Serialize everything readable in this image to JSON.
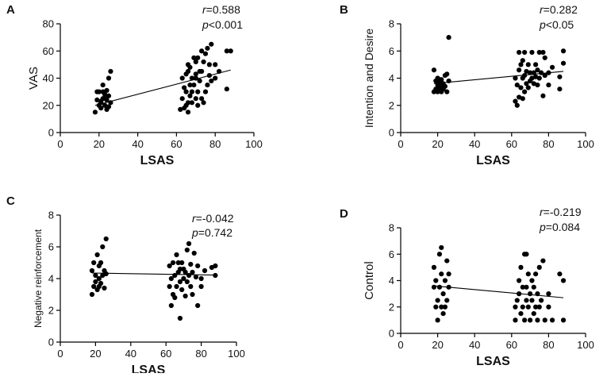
{
  "figure": {
    "title": ""
  },
  "chart_data": [
    {
      "type": "scatter",
      "panel": "A",
      "xlabel": "LSAS",
      "ylabel": "VAS",
      "xlim": [
        0,
        100
      ],
      "ylim": [
        0,
        80
      ],
      "xticks": [
        0,
        20,
        40,
        60,
        80,
        100
      ],
      "yticks": [
        0,
        20,
        40,
        60,
        80
      ],
      "stats": {
        "r_symbol": "r",
        "r_value": "=0.588",
        "p_symbol": "p",
        "p_value": "<0.001"
      },
      "fit": {
        "x": [
          18,
          88
        ],
        "y": [
          20,
          46
        ]
      },
      "points": {
        "x": [
          18,
          19,
          20,
          20,
          21,
          21,
          22,
          22,
          22,
          23,
          23,
          24,
          24,
          24,
          25,
          25,
          25,
          26,
          26,
          19,
          21,
          23,
          62,
          63,
          63,
          64,
          64,
          65,
          65,
          65,
          66,
          66,
          66,
          67,
          67,
          67,
          68,
          68,
          68,
          69,
          69,
          70,
          70,
          70,
          71,
          71,
          71,
          72,
          72,
          73,
          73,
          73,
          74,
          74,
          75,
          75,
          76,
          76,
          77,
          77,
          78,
          78,
          80,
          80,
          82,
          86,
          86,
          88,
          66,
          70
        ],
        "y": [
          15,
          24,
          20,
          30,
          18,
          23,
          25,
          30,
          35,
          20,
          28,
          17,
          24,
          31,
          19,
          27,
          40,
          22,
          45,
          30,
          22,
          25,
          17,
          25,
          40,
          18,
          33,
          20,
          30,
          43,
          15,
          22,
          45,
          27,
          35,
          48,
          22,
          30,
          40,
          35,
          55,
          25,
          43,
          52,
          20,
          30,
          55,
          38,
          45,
          25,
          45,
          60,
          22,
          52,
          30,
          58,
          35,
          62,
          42,
          50,
          38,
          65,
          40,
          50,
          45,
          60,
          32,
          60,
          50,
          40
        ]
      }
    },
    {
      "type": "scatter",
      "panel": "B",
      "xlabel": "LSAS",
      "ylabel": "Intention and Desire",
      "xlim": [
        0,
        100
      ],
      "ylim": [
        0,
        8
      ],
      "xticks": [
        0,
        20,
        40,
        60,
        80,
        100
      ],
      "yticks": [
        0,
        2,
        4,
        6,
        8
      ],
      "stats": {
        "r_symbol": "r",
        "r_value": "=0.282",
        "p_symbol": "p",
        "p_value": "<0.05"
      },
      "fit": {
        "x": [
          18,
          88
        ],
        "y": [
          3.6,
          4.5
        ]
      },
      "points": {
        "x": [
          18,
          18,
          19,
          19,
          20,
          20,
          20,
          21,
          21,
          22,
          22,
          22,
          23,
          23,
          24,
          24,
          25,
          25,
          26,
          26,
          62,
          62,
          63,
          63,
          64,
          64,
          64,
          65,
          65,
          66,
          66,
          66,
          67,
          67,
          67,
          68,
          68,
          69,
          69,
          70,
          70,
          71,
          71,
          72,
          72,
          73,
          73,
          74,
          74,
          75,
          75,
          76,
          77,
          77,
          78,
          78,
          80,
          80,
          82,
          86,
          86,
          88,
          88
        ],
        "y": [
          3.0,
          4.6,
          3.2,
          3.8,
          3.0,
          3.5,
          4.0,
          3.3,
          3.7,
          3.0,
          3.5,
          3.9,
          3.2,
          3.6,
          3.4,
          4.2,
          3.0,
          4.3,
          3.8,
          7.0,
          2.3,
          4.0,
          2.0,
          3.5,
          2.6,
          4.6,
          5.9,
          3.3,
          5.0,
          2.5,
          4.0,
          5.3,
          3.0,
          4.2,
          5.9,
          3.6,
          4.5,
          3.3,
          5.0,
          3.8,
          4.4,
          4.0,
          5.9,
          3.6,
          4.4,
          4.1,
          5.0,
          3.5,
          4.6,
          4.0,
          5.9,
          4.4,
          2.7,
          5.9,
          4.2,
          5.5,
          3.5,
          4.4,
          4.8,
          3.2,
          4.1,
          5.1,
          6.0
        ]
      }
    },
    {
      "type": "scatter",
      "panel": "C",
      "xlabel": "LSAS",
      "ylabel": "Negative reinforcement",
      "xlim": [
        0,
        100
      ],
      "ylim": [
        0,
        8
      ],
      "xticks": [
        0,
        20,
        40,
        60,
        80,
        100
      ],
      "yticks": [
        0,
        2,
        4,
        6,
        8
      ],
      "stats": {
        "r_symbol": "r",
        "r_value": "=-0.042",
        "p_symbol": "p",
        "p_value": "=0.742"
      },
      "fit": {
        "x": [
          18,
          88
        ],
        "y": [
          4.35,
          4.22
        ]
      },
      "points": {
        "x": [
          18,
          18,
          19,
          19,
          20,
          20,
          21,
          21,
          22,
          22,
          22,
          23,
          23,
          24,
          24,
          25,
          25,
          26,
          26,
          62,
          62,
          63,
          63,
          64,
          64,
          65,
          65,
          66,
          66,
          67,
          67,
          68,
          68,
          68,
          69,
          69,
          70,
          70,
          71,
          71,
          72,
          72,
          73,
          73,
          74,
          74,
          75,
          75,
          76,
          77,
          78,
          78,
          80,
          80,
          82,
          86,
          88,
          88
        ],
        "y": [
          3.0,
          4.5,
          3.5,
          5.0,
          3.8,
          4.2,
          3.3,
          5.5,
          3.5,
          4.0,
          4.8,
          3.7,
          5.0,
          4.2,
          6.0,
          3.4,
          4.5,
          4.3,
          6.5,
          3.5,
          4.8,
          2.3,
          4.0,
          3.0,
          5.0,
          2.8,
          4.2,
          3.5,
          5.5,
          4.4,
          5.0,
          1.5,
          3.8,
          4.6,
          3.3,
          5.0,
          4.0,
          4.6,
          2.9,
          4.4,
          3.8,
          5.8,
          4.2,
          6.2,
          3.5,
          4.9,
          3.0,
          4.4,
          5.6,
          4.1,
          2.3,
          4.8,
          4.0,
          3.5,
          4.5,
          4.7,
          4.2,
          4.8
        ]
      }
    },
    {
      "type": "scatter",
      "panel": "D",
      "xlabel": "LSAS",
      "ylabel": "Control",
      "xlim": [
        0,
        100
      ],
      "ylim": [
        0,
        8
      ],
      "xticks": [
        0,
        20,
        40,
        60,
        80,
        100
      ],
      "yticks": [
        0,
        2,
        4,
        6,
        8
      ],
      "stats": {
        "r_symbol": "r",
        "r_value": "=-0.219",
        "p_symbol": "p",
        "p_value": "=0.084"
      },
      "fit": {
        "x": [
          18,
          88
        ],
        "y": [
          3.6,
          2.7
        ]
      },
      "points": {
        "x": [
          18,
          18,
          19,
          19,
          20,
          20,
          21,
          21,
          22,
          22,
          22,
          23,
          23,
          24,
          24,
          25,
          25,
          26,
          26,
          62,
          62,
          63,
          64,
          64,
          65,
          65,
          66,
          66,
          67,
          67,
          68,
          68,
          68,
          69,
          69,
          70,
          70,
          71,
          71,
          72,
          72,
          73,
          73,
          74,
          74,
          75,
          75,
          76,
          77,
          78,
          80,
          80,
          82,
          86,
          88,
          88
        ],
        "y": [
          3.5,
          5.0,
          2.0,
          4.0,
          1.0,
          2.5,
          3.5,
          6.0,
          2.0,
          4.5,
          6.5,
          1.5,
          3.0,
          2.0,
          4.0,
          5.5,
          2.5,
          3.5,
          4.5,
          1.0,
          2.0,
          2.5,
          3.0,
          4.0,
          1.5,
          5.0,
          2.0,
          3.5,
          6.0,
          1.0,
          2.5,
          3.5,
          6.0,
          2.0,
          4.5,
          1.0,
          3.0,
          2.5,
          4.0,
          1.5,
          3.5,
          2.0,
          4.5,
          1.0,
          3.0,
          2.0,
          5.0,
          2.5,
          5.5,
          1.0,
          2.0,
          3.0,
          1.0,
          4.5,
          1.0,
          4.0
        ]
      }
    }
  ]
}
